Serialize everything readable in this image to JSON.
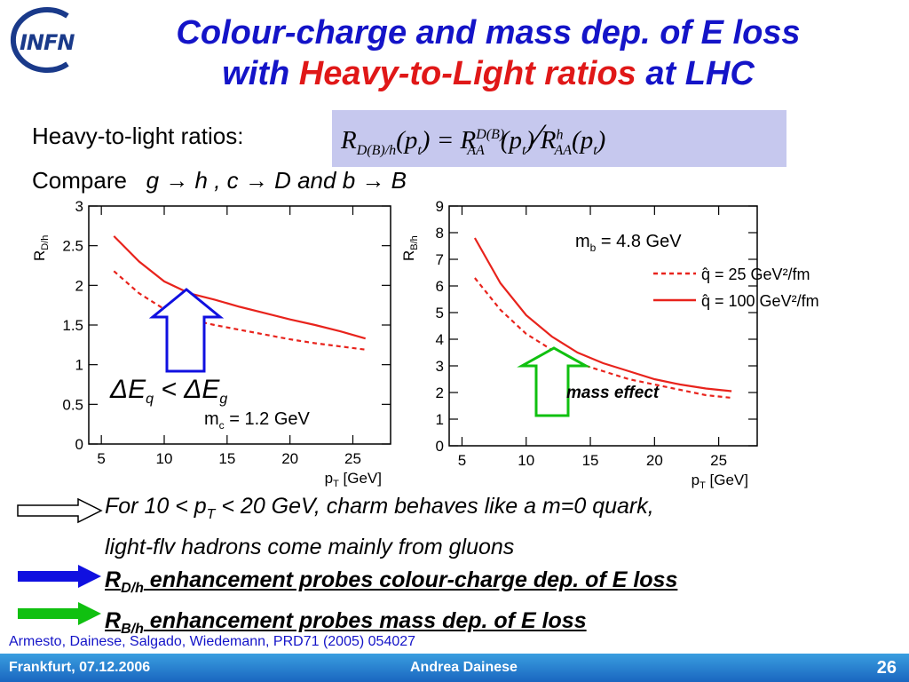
{
  "title": {
    "line1": "Colour-charge and mass dep. of E loss",
    "line2_a": "with ",
    "line2_red": "Heavy-to-Light ratios",
    "line2_b": " at LHC"
  },
  "logo": {
    "text": "INFN"
  },
  "ratios_label": "Heavy-to-light ratios:",
  "compare": {
    "label": "Compare",
    "text": "g → h ,  c → D  and  b → B"
  },
  "formula": {
    "lhs": "R",
    "lhs_sub": "D(B)/h",
    "arg": "(p",
    "arg_sub": "t",
    "close": ")",
    "eq": " = ",
    "r1": "R",
    "r1_sup": "D(B)",
    "r1_sub": "AA",
    "slash": "⁄",
    "r2": "R",
    "r2_sup": "h",
    "r2_sub": "AA"
  },
  "chart_data": [
    {
      "type": "line",
      "ylabel": "R_D/h",
      "xlabel": "p_T [GeV]",
      "xlim": [
        4,
        28
      ],
      "ylim": [
        0,
        3
      ],
      "xticks": [
        "5",
        "10",
        "15",
        "20",
        "25"
      ],
      "yticks": [
        "0",
        "0.5",
        "1",
        "1.5",
        "2",
        "2.5",
        "3"
      ],
      "annotation": "m_c = 1.2 GeV",
      "arrow_label": "ΔE_q < ΔE_g",
      "series": [
        {
          "style": "solid",
          "x": [
            6,
            8,
            10,
            12,
            14,
            16,
            18,
            20,
            22,
            24,
            26
          ],
          "y": [
            2.62,
            2.3,
            2.05,
            1.9,
            1.82,
            1.73,
            1.65,
            1.57,
            1.5,
            1.42,
            1.33
          ]
        },
        {
          "style": "dashed",
          "x": [
            6,
            8,
            10,
            12,
            14,
            16,
            18,
            20,
            22,
            24,
            26
          ],
          "y": [
            2.18,
            1.9,
            1.7,
            1.57,
            1.5,
            1.44,
            1.38,
            1.32,
            1.27,
            1.23,
            1.19
          ]
        }
      ]
    },
    {
      "type": "line",
      "ylabel": "R_B/h",
      "xlabel": "p_T [GeV]",
      "xlim": [
        4,
        28
      ],
      "ylim": [
        0,
        9
      ],
      "xticks": [
        "5",
        "10",
        "15",
        "20",
        "25"
      ],
      "yticks": [
        "0",
        "1",
        "2",
        "3",
        "4",
        "5",
        "6",
        "7",
        "8",
        "9"
      ],
      "annotation": "m_b = 4.8 GeV",
      "arrow_label": "mass effect",
      "series": [
        {
          "name": "q̂ = 25 GeV²/fm",
          "style": "dashed",
          "x": [
            6,
            8,
            10,
            12,
            14,
            16,
            18,
            20,
            22,
            24,
            26
          ],
          "y": [
            6.3,
            5.1,
            4.2,
            3.6,
            3.1,
            2.8,
            2.5,
            2.3,
            2.1,
            1.9,
            1.8
          ]
        },
        {
          "name": "q̂ = 100 GeV²/fm",
          "style": "solid",
          "x": [
            6,
            8,
            10,
            12,
            14,
            16,
            18,
            20,
            22,
            24,
            26
          ],
          "y": [
            7.8,
            6.1,
            4.9,
            4.1,
            3.5,
            3.1,
            2.8,
            2.5,
            2.3,
            2.15,
            2.05
          ]
        }
      ]
    }
  ],
  "bullets": [
    {
      "a": "For 10 < p",
      "sub": "T",
      "b": " < 20 GeV, charm behaves like a m=0 quark,"
    },
    {
      "a": "light-flv hadrons come mainly from gluons"
    },
    {
      "a": "R",
      "sub": "D/h",
      "b": " enhancement probes colour-charge dep. of E loss"
    },
    {
      "a": "R",
      "sub": "B/h",
      "b": " enhancement probes mass dep. of E loss"
    }
  ],
  "reference": "Armesto, Dainese, Salgado, Wiedemann, PRD71 (2005) 054027",
  "footer": {
    "left": "Frankfurt, 07.12.2006",
    "center": "Andrea Dainese",
    "page": "26"
  },
  "colors": {
    "title_blue": "#1414c8",
    "title_red": "#e01818",
    "curve_red": "#e8231c",
    "arrow_blue": "#1010e0",
    "arrow_green": "#10c010"
  }
}
